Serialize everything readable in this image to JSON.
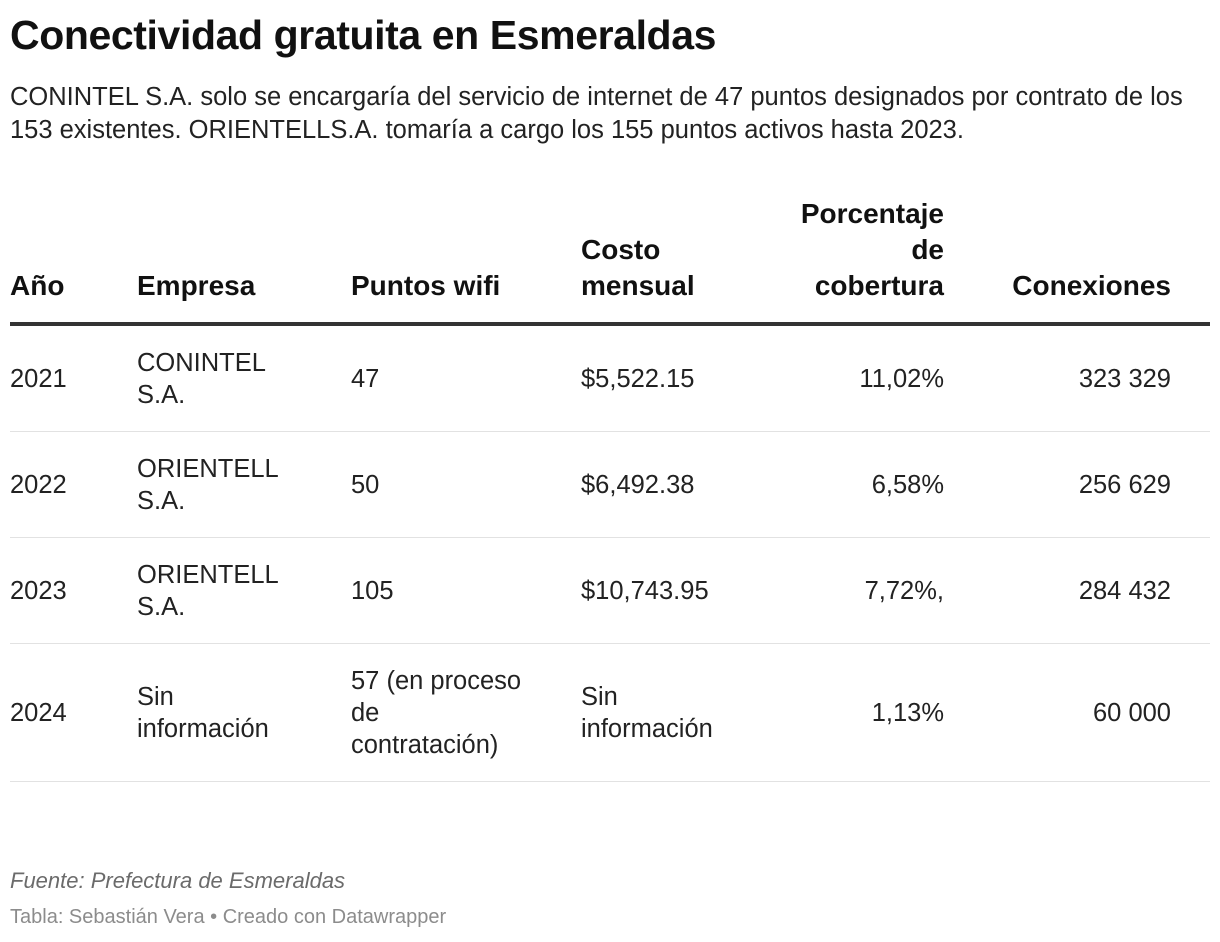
{
  "title": "Conectividad gratuita en Esmeraldas",
  "subtitle": "CONINTEL S.A. solo se encargaría del servicio de internet de 47 puntos designados por contrato de los 153 existentes. ORIENTELLS.A. tomaría a cargo los 155 puntos activos hasta 2023.",
  "chart_data": {
    "type": "table",
    "columns": [
      "Año",
      "Empresa",
      "Puntos wifi",
      "Costo mensual",
      "Porcentaje de cobertura",
      "Conexiones"
    ],
    "rows": [
      {
        "anio": "2021",
        "empresa": "CONINTEL S.A.",
        "puntos": "47",
        "costo": "$5,522.15",
        "porcentaje": "11,02%",
        "conexiones": "323 329"
      },
      {
        "anio": "2022",
        "empresa": "ORIENTELL S.A.",
        "puntos": "50",
        "costo": "$6,492.38",
        "porcentaje": "6,58%",
        "conexiones": "256 629"
      },
      {
        "anio": "2023",
        "empresa": "ORIENTELL S.A.",
        "puntos": "105",
        "costo": "$10,743.95",
        "porcentaje": "7,72%,",
        "conexiones": "284 432"
      },
      {
        "anio": "2024",
        "empresa": "Sin información",
        "puntos": "57 (en proceso de contratación)",
        "costo": "Sin información",
        "porcentaje": "1,13%",
        "conexiones": "60 000"
      }
    ]
  },
  "footer": {
    "source": "Fuente: Prefectura de Esmeraldas",
    "credit": "Tabla: Sebastián Vera • Creado con Datawrapper"
  }
}
